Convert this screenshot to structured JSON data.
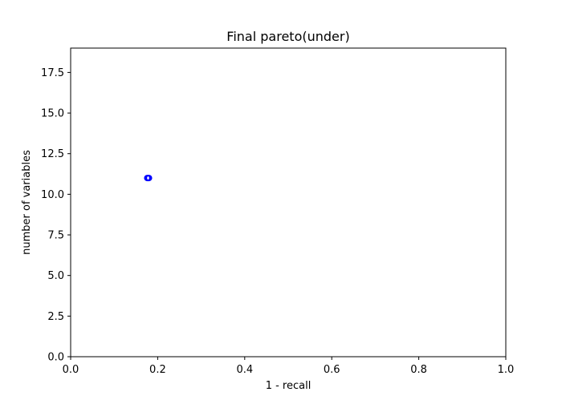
{
  "chart_data": {
    "type": "scatter",
    "title": "Final pareto(under)",
    "xlabel": "1 - recall",
    "ylabel": "number of variables",
    "xlim": [
      0.0,
      1.0
    ],
    "ylim": [
      0.0,
      19.0
    ],
    "xticks": [
      "0.0",
      "0.2",
      "0.4",
      "0.6",
      "0.8",
      "1.0"
    ],
    "yticks": [
      "0.0",
      "2.5",
      "5.0",
      "7.5",
      "10.0",
      "12.5",
      "15.0",
      "17.5"
    ],
    "grid": false,
    "series": [
      {
        "marker": "open-circle",
        "color": "#0000ff",
        "points": [
          {
            "x": 0.176,
            "y": 11.0
          },
          {
            "x": 0.178,
            "y": 11.0
          },
          {
            "x": 0.18,
            "y": 11.0
          }
        ]
      }
    ]
  }
}
